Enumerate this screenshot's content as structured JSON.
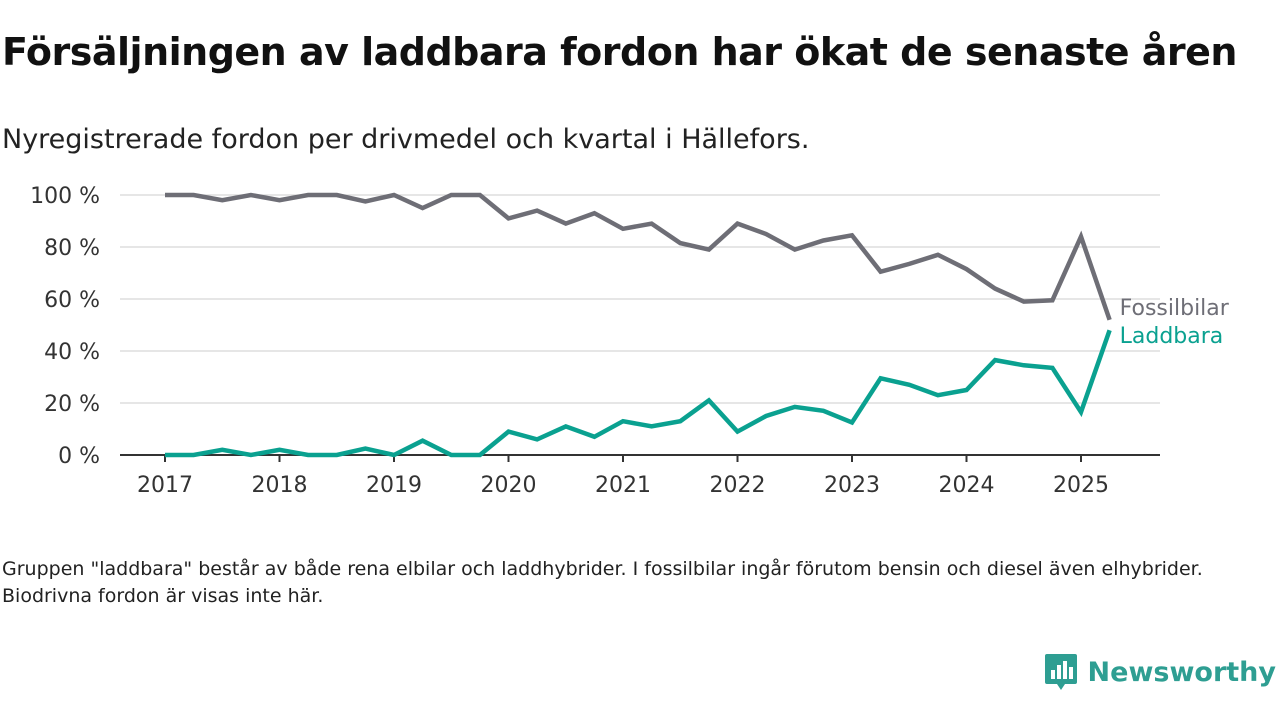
{
  "header": {
    "title": "Försäljningen av laddbara fordon har ökat de senaste åren",
    "subtitle": "Nyregistrerade fordon per drivmedel och kvartal i Hällefors."
  },
  "footer": {
    "note": "Gruppen \"laddbara\" består av både rena elbilar och laddhybrider. I fossilbilar ingår förutom bensin och diesel även elhybrider. Biodrivna fordon är visas inte här.",
    "brand": "Newsworthy"
  },
  "colors": {
    "fossil": "#6e6e76",
    "laddbara": "#0aa190",
    "grid": "#d6d6d6",
    "axis": "#333333",
    "brand": "#2e9e92"
  },
  "chart_data": {
    "type": "line",
    "title": "Försäljningen av laddbara fordon har ökat de senaste åren",
    "subtitle": "Nyregistrerade fordon per drivmedel och kvartal i Hällefors.",
    "x_unit": "quarter",
    "x_start": "2017 Q1",
    "xticks": [
      "2017",
      "2018",
      "2019",
      "2020",
      "2021",
      "2022",
      "2023",
      "2024",
      "2025"
    ],
    "yticks": [
      "0 %",
      "20 %",
      "40 %",
      "60 %",
      "80 %",
      "100 %"
    ],
    "ylim": [
      0,
      100
    ],
    "grid": "horizontal",
    "series": [
      {
        "name": "Fossilbilar",
        "color": "#6e6e76",
        "values": [
          100,
          100,
          98,
          100,
          98,
          100,
          100,
          97.5,
          100,
          95,
          100,
          100,
          91,
          94,
          89,
          93,
          87,
          89,
          81.5,
          79,
          89,
          85,
          79,
          82.5,
          84.5,
          70.5,
          73.5,
          77,
          71.5,
          64,
          59,
          59.5,
          84,
          52
        ]
      },
      {
        "name": "Laddbara",
        "color": "#0aa190",
        "values": [
          0,
          0,
          2,
          0,
          2,
          0,
          0,
          2.5,
          0,
          5.5,
          0,
          0,
          9,
          6,
          11,
          7,
          13,
          11,
          13,
          21,
          9,
          15,
          18.5,
          17,
          12.5,
          29.5,
          27,
          23,
          25,
          36.5,
          34.5,
          33.5,
          16.5,
          48
        ]
      }
    ]
  }
}
